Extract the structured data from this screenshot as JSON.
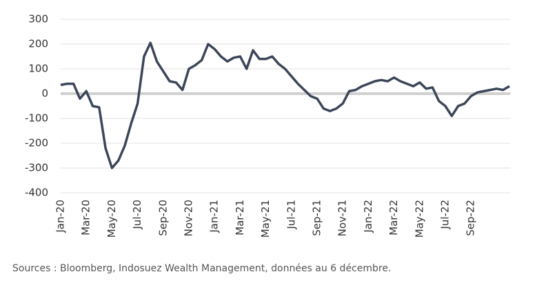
{
  "chart_data": {
    "type": "line",
    "categories": [
      "Jan-20",
      null,
      null,
      null,
      "Mar-20",
      null,
      null,
      null,
      "May-20",
      null,
      null,
      null,
      "Jul-20",
      null,
      null,
      null,
      "Sep-20",
      null,
      null,
      null,
      "Nov-20",
      null,
      null,
      null,
      "Jan-21",
      null,
      null,
      null,
      "Mar-21",
      null,
      null,
      null,
      "May-21",
      null,
      null,
      null,
      "Jul-21",
      null,
      null,
      null,
      "Sep-21",
      null,
      null,
      null,
      "Nov-21",
      null,
      null,
      null,
      "Jan-22",
      null,
      null,
      null,
      "Mar-22",
      null,
      null,
      null,
      "May-22",
      null,
      null,
      null,
      "Jul-22",
      null,
      null,
      null,
      "Sep-22",
      null,
      null,
      null,
      null,
      null,
      null
    ],
    "series": [
      {
        "color": "#3b4659",
        "values": [
          35,
          40,
          40,
          -20,
          10,
          -50,
          -55,
          -220,
          -300,
          -270,
          -210,
          -120,
          -40,
          150,
          205,
          130,
          90,
          50,
          45,
          15,
          100,
          115,
          135,
          200,
          180,
          150,
          130,
          145,
          150,
          100,
          175,
          140,
          140,
          150,
          120,
          100,
          70,
          40,
          15,
          -10,
          -20,
          -60,
          -70,
          -60,
          -40,
          10,
          15,
          30,
          40,
          50,
          55,
          50,
          65,
          50,
          40,
          30,
          45,
          20,
          25,
          -30,
          -50,
          -90,
          -50,
          -40,
          -10,
          5,
          10,
          15,
          20,
          15,
          30
        ]
      }
    ],
    "ylim": [
      -400,
      300
    ],
    "yticks": [
      -400,
      -300,
      -200,
      -100,
      0,
      100,
      200,
      300
    ],
    "grid": true,
    "source": "Sources :  Bloomberg, Indosuez Wealth Management, données au 6 décembre."
  }
}
